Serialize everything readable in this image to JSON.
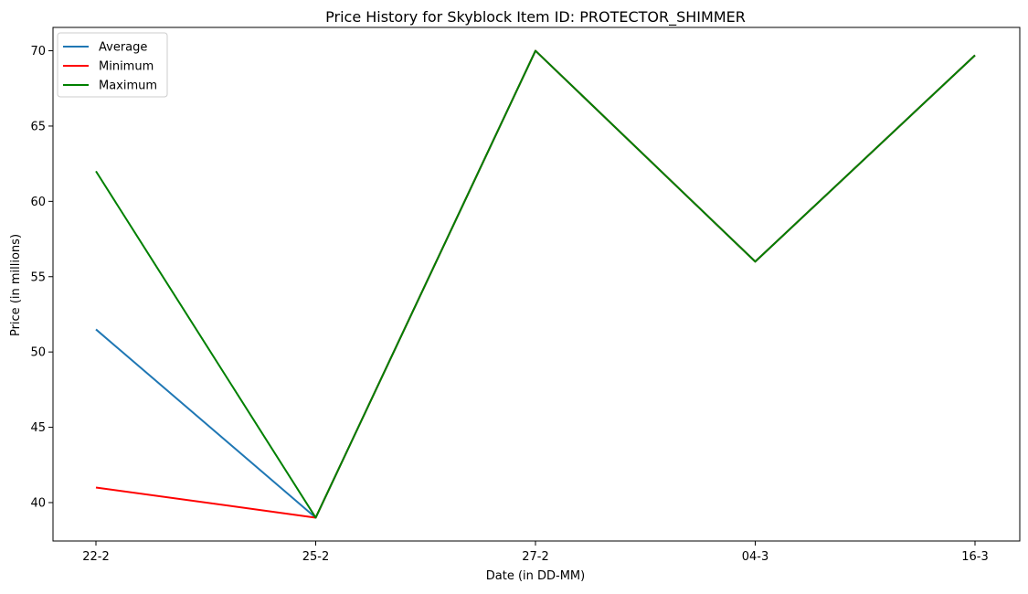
{
  "chart_data": {
    "type": "line",
    "title": "Price History for Skyblock Item ID: PROTECTOR_SHIMMER",
    "xlabel": "Date (in DD-MM)",
    "ylabel": "Price (in millions)",
    "categories": [
      "22-2",
      "25-2",
      "27-2",
      "04-3",
      "16-3"
    ],
    "series": [
      {
        "name": "Average",
        "color": "#1f77b4",
        "values": [
          51.5,
          39.0,
          70.0,
          56.0,
          69.7
        ]
      },
      {
        "name": "Minimum",
        "color": "#ff0000",
        "values": [
          41.0,
          39.0,
          70.0,
          56.0,
          69.7
        ]
      },
      {
        "name": "Maximum",
        "color": "#008000",
        "values": [
          62.0,
          39.0,
          70.0,
          56.0,
          69.7
        ]
      }
    ],
    "yticks": [
      40,
      45,
      50,
      55,
      60,
      65,
      70
    ],
    "ylim": [
      37.45,
      71.55
    ],
    "grid": false,
    "legend_position": "top-left"
  }
}
